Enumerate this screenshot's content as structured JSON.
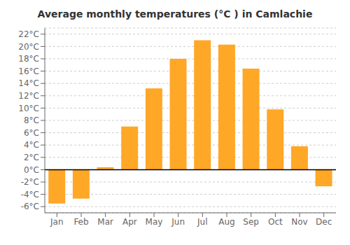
{
  "chart_data": {
    "type": "bar",
    "title": "Average monthly temperatures (°C ) in Camlachie",
    "categories": [
      "Jan",
      "Feb",
      "Mar",
      "Apr",
      "May",
      "Jun",
      "Jul",
      "Aug",
      "Sep",
      "Oct",
      "Nov",
      "Dec"
    ],
    "values": [
      -5.5,
      -4.7,
      0.4,
      7.0,
      13.2,
      18.0,
      21.0,
      20.3,
      16.4,
      9.8,
      3.8,
      -2.7
    ],
    "color": "#FFA726",
    "ylim": [
      -7,
      23
    ],
    "yticks": [
      {
        "value": -6,
        "label": "-6°C"
      },
      {
        "value": -4,
        "label": "-4°C"
      },
      {
        "value": -2,
        "label": "-2°C"
      },
      {
        "value": 0,
        "label": "0°C"
      },
      {
        "value": 2,
        "label": "2°C"
      },
      {
        "value": 4,
        "label": "4°C"
      },
      {
        "value": 6,
        "label": "6°C"
      },
      {
        "value": 8,
        "label": "8°C"
      },
      {
        "value": 10,
        "label": "10°C"
      },
      {
        "value": 12,
        "label": "12°C"
      },
      {
        "value": 14,
        "label": "14°C"
      },
      {
        "value": 16,
        "label": "16°C"
      },
      {
        "value": 18,
        "label": "18°C"
      },
      {
        "value": 20,
        "label": "20°C"
      },
      {
        "value": 22,
        "label": "22°C"
      }
    ],
    "grid": true
  }
}
